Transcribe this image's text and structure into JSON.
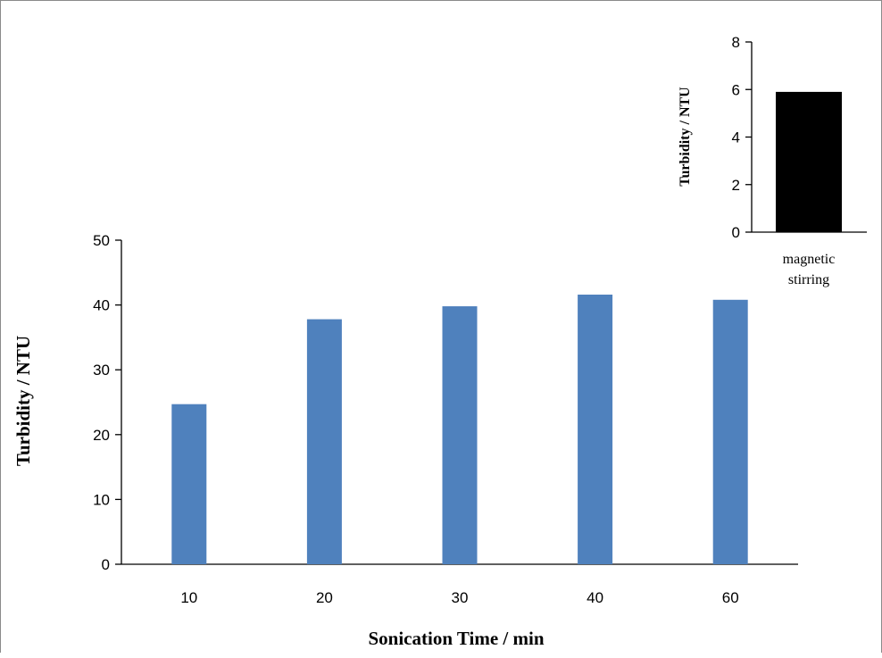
{
  "chart_data": [
    {
      "type": "bar",
      "categories": [
        "10",
        "20",
        "30",
        "40",
        "60"
      ],
      "values": [
        24.7,
        37.8,
        39.8,
        41.6,
        40.8
      ],
      "xlabel": "Sonication Time / min",
      "ylabel": "Turbidity / NTU",
      "ylim": [
        0,
        50
      ],
      "yticks": [
        "0",
        "10",
        "20",
        "30",
        "40",
        "50"
      ],
      "bar_color": "#4f81bd",
      "grid": false,
      "legend": "none"
    },
    {
      "type": "bar",
      "categories": [
        "magnetic stirring"
      ],
      "category_lines": [
        "magnetic",
        "stirring"
      ],
      "values": [
        5.9
      ],
      "xlabel": "",
      "ylabel": "Turbidity / NTU",
      "ylim": [
        0,
        8
      ],
      "yticks": [
        "0",
        "2",
        "4",
        "6",
        "8"
      ],
      "bar_color": "#000000",
      "grid": false,
      "legend": "none"
    }
  ]
}
